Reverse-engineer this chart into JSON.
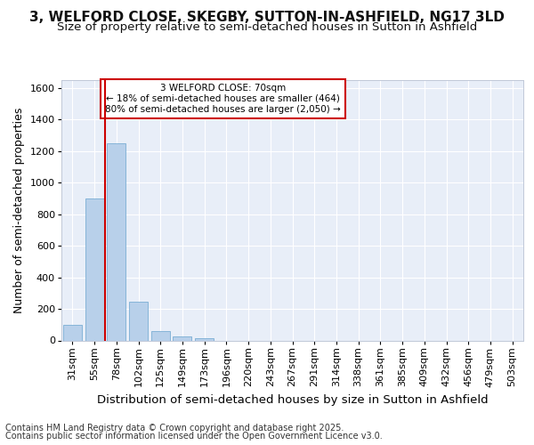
{
  "title1": "3, WELFORD CLOSE, SKEGBY, SUTTON-IN-ASHFIELD, NG17 3LD",
  "title2": "Size of property relative to semi-detached houses in Sutton in Ashfield",
  "xlabel": "Distribution of semi-detached houses by size in Sutton in Ashfield",
  "ylabel": "Number of semi-detached properties",
  "footer1": "Contains HM Land Registry data © Crown copyright and database right 2025.",
  "footer2": "Contains public sector information licensed under the Open Government Licence v3.0.",
  "categories": [
    "31sqm",
    "55sqm",
    "78sqm",
    "102sqm",
    "125sqm",
    "149sqm",
    "173sqm",
    "196sqm",
    "220sqm",
    "243sqm",
    "267sqm",
    "291sqm",
    "314sqm",
    "338sqm",
    "361sqm",
    "385sqm",
    "409sqm",
    "432sqm",
    "456sqm",
    "479sqm",
    "503sqm"
  ],
  "values": [
    100,
    900,
    1250,
    245,
    60,
    25,
    15,
    0,
    0,
    0,
    0,
    0,
    0,
    0,
    0,
    0,
    0,
    0,
    0,
    0,
    0
  ],
  "bar_color": "#b8d0ea",
  "bar_edge_color": "#7aadd4",
  "vline_x": 1.5,
  "vline_color": "#cc0000",
  "annotation_line1": "3 WELFORD CLOSE: 70sqm",
  "annotation_line2": "← 18% of semi-detached houses are smaller (464)",
  "annotation_line3": "80% of semi-detached houses are larger (2,050) →",
  "annotation_box_color": "#cc0000",
  "ylim": [
    0,
    1650
  ],
  "yticks": [
    0,
    200,
    400,
    600,
    800,
    1000,
    1200,
    1400,
    1600
  ],
  "bg_color": "#ffffff",
  "plot_bg_color": "#e8eef8",
  "grid_color": "#ffffff",
  "title_fontsize": 11,
  "subtitle_fontsize": 9.5,
  "tick_fontsize": 8,
  "ylabel_fontsize": 9,
  "xlabel_fontsize": 9.5,
  "footer_fontsize": 7
}
